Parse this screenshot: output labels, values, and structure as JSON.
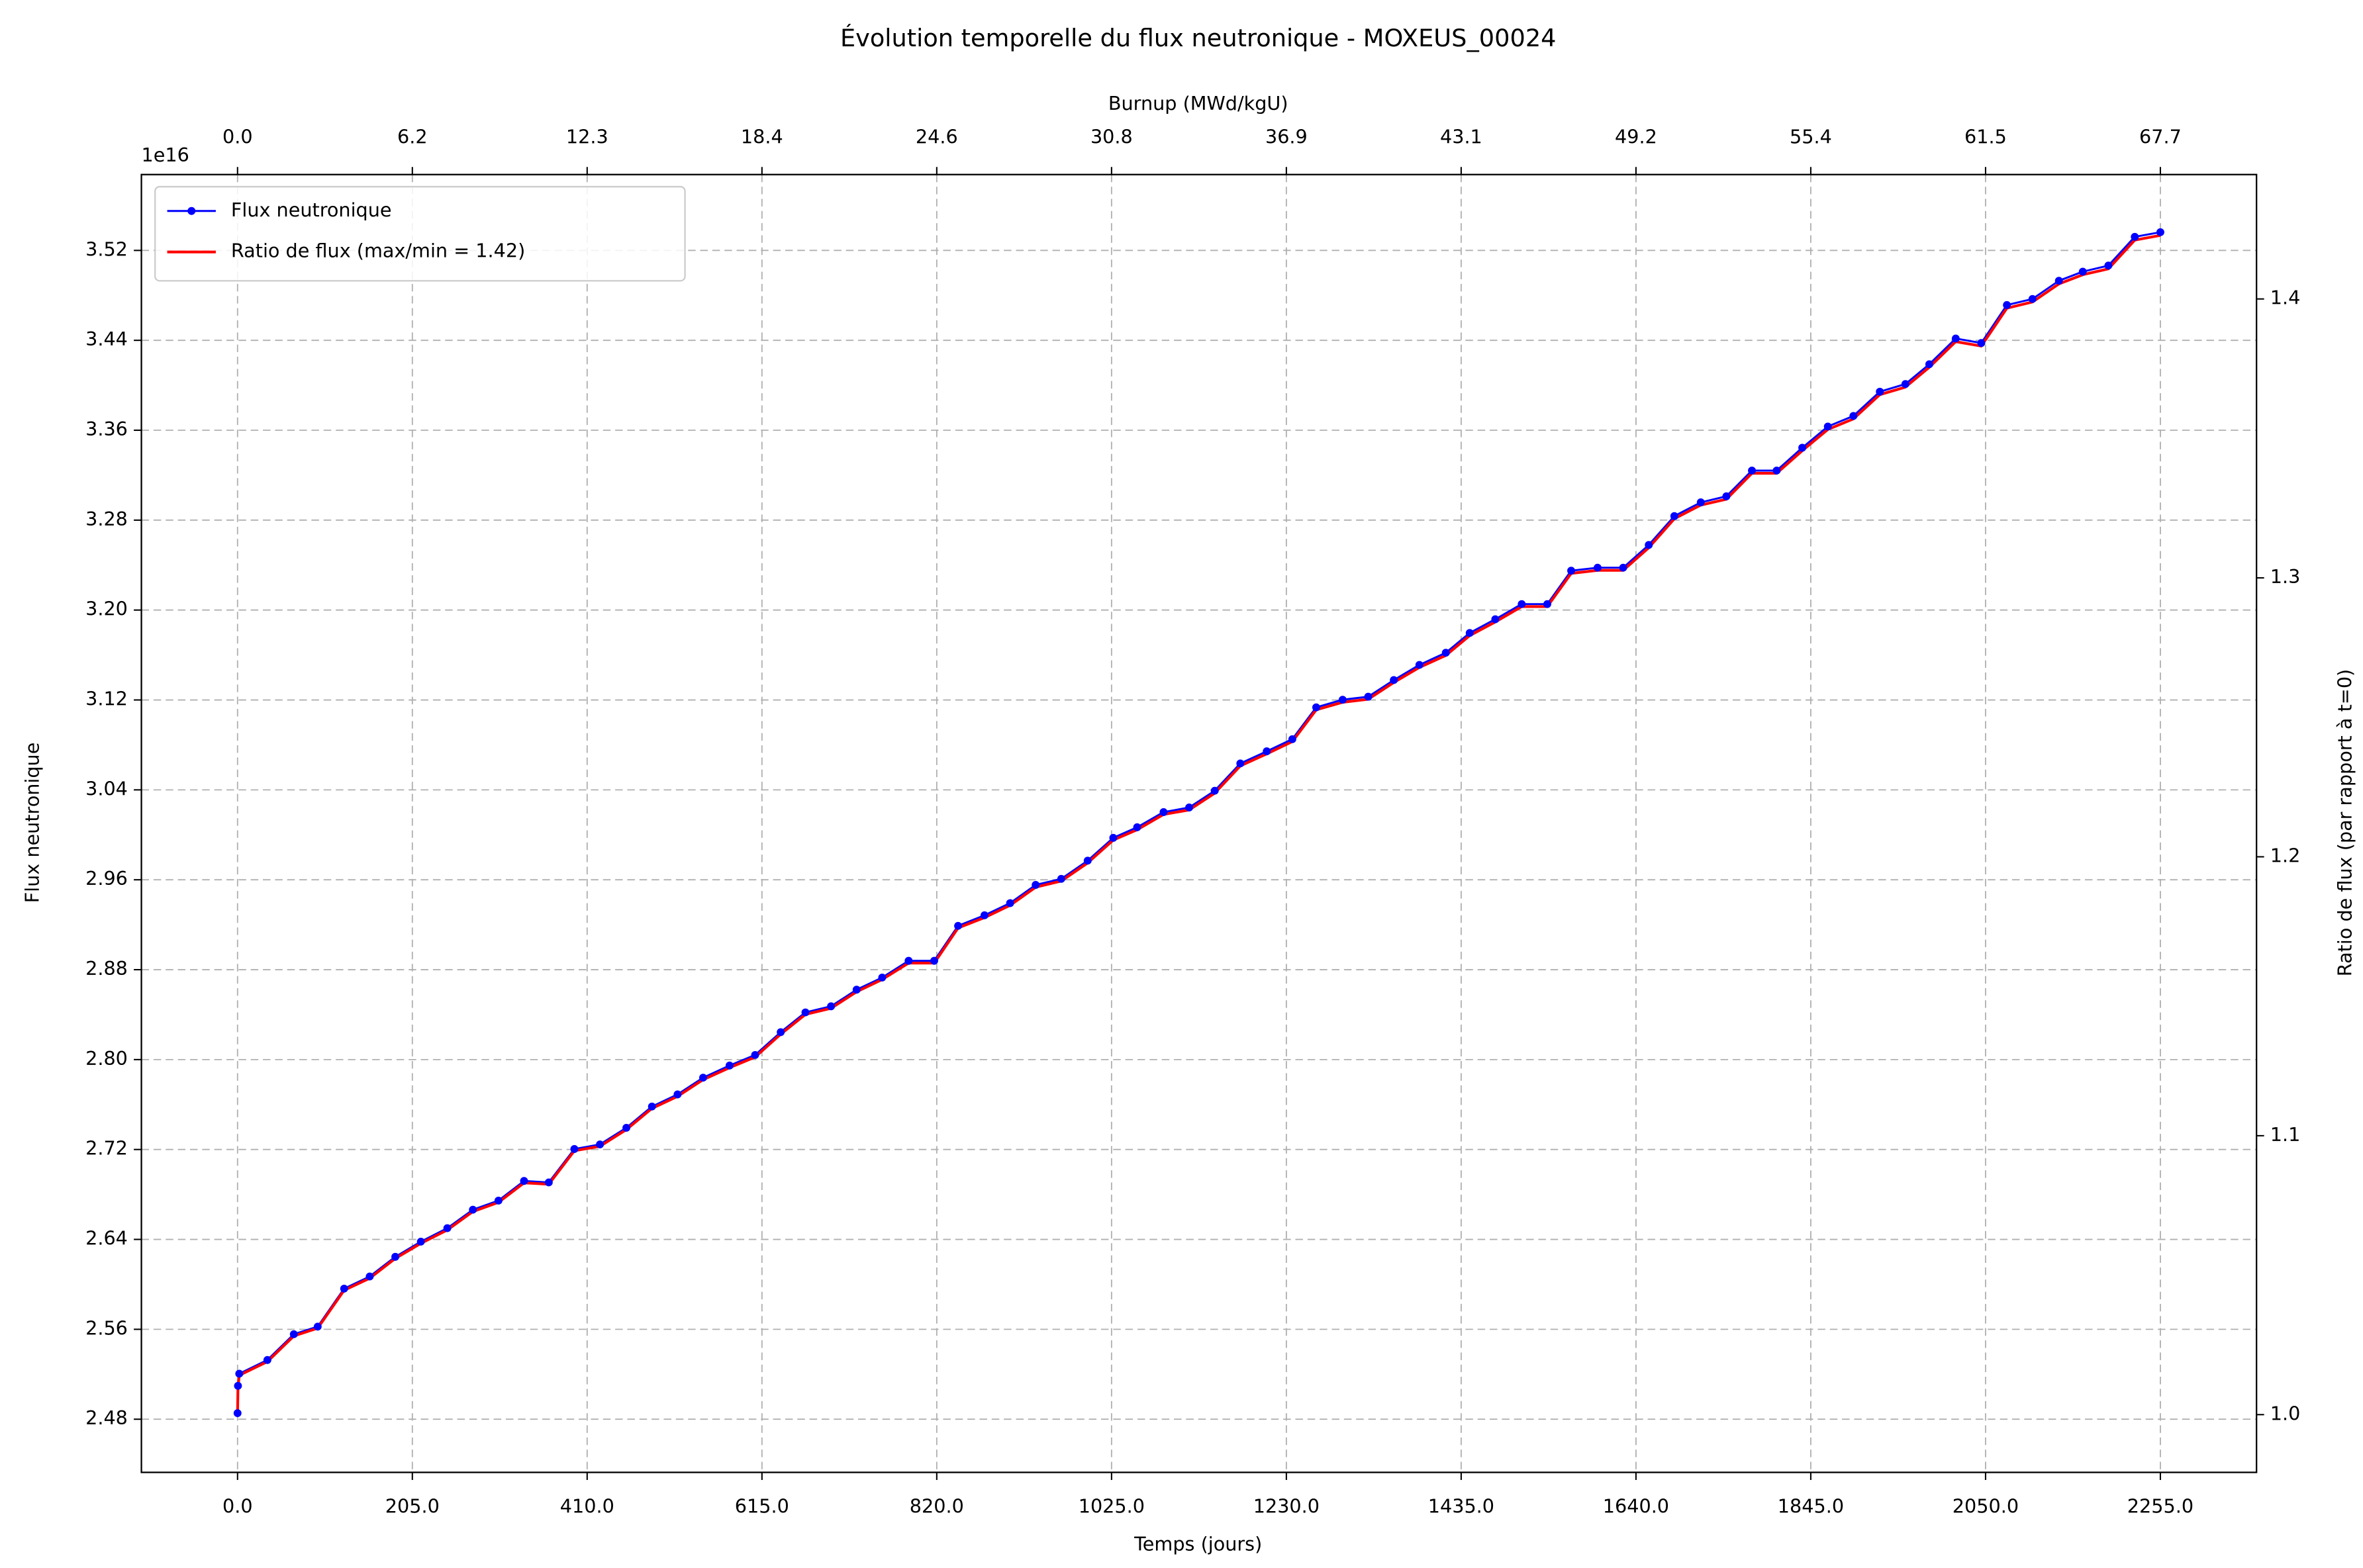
{
  "chart_data": {
    "type": "line",
    "title": "Évolution temporelle du flux neutronique - MOXEUS_00024",
    "x_label": "Temps (jours)",
    "y_label": "Flux neutronique",
    "y_offset_label": "1e16",
    "y2_label": "Ratio de flux (par rapport à t=0)",
    "x2_label": "Burnup (MWd/kgU)",
    "x": [
      0,
      0.5,
      2,
      35,
      66,
      94,
      125,
      155,
      185,
      215,
      246,
      276,
      306,
      336,
      365,
      395,
      425,
      456,
      486,
      516,
      546,
      577,
      607,
      637,
      666,
      696,
      726,
      756,
      787,
      817,
      845,
      876,
      906,
      936,
      966,
      997,
      1027,
      1055,
      1086,
      1116,
      1146,
      1176,
      1207,
      1237,
      1265,
      1296,
      1326,
      1356,
      1386,
      1417,
      1445,
      1475,
      1506,
      1536,
      1564,
      1595,
      1625,
      1655,
      1685,
      1716,
      1746,
      1776,
      1805,
      1835,
      1865,
      1895,
      1926,
      1956,
      1984,
      2015,
      2045,
      2075,
      2105,
      2136,
      2164,
      2194,
      2225,
      2255
    ],
    "series": [
      {
        "name": "Flux neutronique",
        "color": "#0000ff",
        "marker": true,
        "values": [
          2.4854,
          2.5097,
          2.5205,
          2.5327,
          2.5556,
          2.5624,
          2.5962,
          2.607,
          2.6245,
          2.638,
          2.65,
          2.6664,
          2.6745,
          2.692,
          2.6907,
          2.7204,
          2.7245,
          2.7393,
          2.7582,
          2.769,
          2.7839,
          2.7947,
          2.8041,
          2.8244,
          2.842,
          2.8474,
          2.8622,
          2.873,
          2.8879,
          2.8879,
          2.919,
          2.9284,
          2.9392,
          2.9554,
          2.9608,
          2.977,
          2.9973,
          3.0067,
          3.0202,
          3.0243,
          3.0392,
          3.0635,
          3.0743,
          3.0851,
          3.1134,
          3.1202,
          3.1229,
          3.1377,
          3.1512,
          3.162,
          3.1796,
          3.1918,
          3.2053,
          3.2053,
          3.235,
          3.2377,
          3.2377,
          3.2579,
          3.2836,
          3.2958,
          3.3012,
          3.3241,
          3.3241,
          3.3444,
          3.3633,
          3.3727,
          3.3943,
          3.4011,
          3.4187,
          3.4416,
          3.4376,
          3.4714,
          3.4768,
          3.493,
          3.5011,
          3.5065,
          3.5321,
          3.5362
        ]
      },
      {
        "name": "Ratio de flux (max/min = 1.42)",
        "color": "#ff0000",
        "axis": "y2",
        "values": [
          1.0,
          1.0098,
          1.0141,
          1.019,
          1.0282,
          1.031,
          1.0446,
          1.0489,
          1.056,
          1.0614,
          1.0662,
          1.0728,
          1.0761,
          1.0831,
          1.0826,
          1.0946,
          1.0962,
          1.1022,
          1.1098,
          1.1141,
          1.1201,
          1.1244,
          1.1282,
          1.1364,
          1.1435,
          1.1457,
          1.1516,
          1.156,
          1.1619,
          1.1619,
          1.1745,
          1.1782,
          1.1826,
          1.1891,
          1.1913,
          1.1978,
          1.206,
          1.2097,
          1.2152,
          1.2168,
          1.2228,
          1.2326,
          1.2369,
          1.2413,
          1.2527,
          1.2554,
          1.2565,
          1.2625,
          1.2679,
          1.2722,
          1.2793,
          1.2842,
          1.2897,
          1.2897,
          1.3016,
          1.3027,
          1.3027,
          1.3108,
          1.3212,
          1.3261,
          1.3282,
          1.3375,
          1.3375,
          1.3456,
          1.3532,
          1.357,
          1.3657,
          1.3684,
          1.3755,
          1.3847,
          1.3831,
          1.3967,
          1.3989,
          1.4054,
          1.4087,
          1.4108,
          1.4211,
          1.4228
        ]
      }
    ],
    "xlim": [
      -112.75,
      2367.75
    ],
    "xticks": [
      {
        "value": 0,
        "label": "0.0"
      },
      {
        "value": 205,
        "label": "205.0"
      },
      {
        "value": 410,
        "label": "410.0"
      },
      {
        "value": 615,
        "label": "615.0"
      },
      {
        "value": 820,
        "label": "820.0"
      },
      {
        "value": 1025,
        "label": "1025.0"
      },
      {
        "value": 1230,
        "label": "1230.0"
      },
      {
        "value": 1435,
        "label": "1435.0"
      },
      {
        "value": 1640,
        "label": "1640.0"
      },
      {
        "value": 1845,
        "label": "1845.0"
      },
      {
        "value": 2050,
        "label": "2050.0"
      },
      {
        "value": 2255,
        "label": "2255.0"
      }
    ],
    "x2lim": [
      -3.3825,
      71.0325
    ],
    "x2ticks": [
      {
        "value": 0,
        "label": "0.0"
      },
      {
        "value": 6.15,
        "label": "6.2"
      },
      12.3,
      {
        "value": 18.45,
        "label": "18.4"
      },
      24.6,
      {
        "value": 30.75,
        "label": "30.8"
      },
      36.9,
      {
        "value": 43.05,
        "label": "43.1"
      },
      49.2,
      {
        "value": 55.35,
        "label": "55.4"
      },
      61.5,
      {
        "value": 67.65,
        "label": "67.7"
      }
    ],
    "ylim": [
      2.4327,
      3.5875
    ],
    "yticks": [
      2.48,
      2.56,
      2.64,
      2.72,
      {
        "value": 2.8,
        "label": "2.80"
      },
      2.88,
      2.96,
      3.04,
      3.12,
      {
        "value": 3.2,
        "label": "3.20"
      },
      3.28,
      3.36,
      3.44,
      3.52
    ],
    "y2lim": [
      0.9793,
      1.4446
    ],
    "y2ticks": [
      {
        "value": 1.0,
        "label": "1.0"
      },
      1.1,
      1.2,
      1.3,
      1.4
    ],
    "grid": true,
    "legend": "upper left"
  }
}
